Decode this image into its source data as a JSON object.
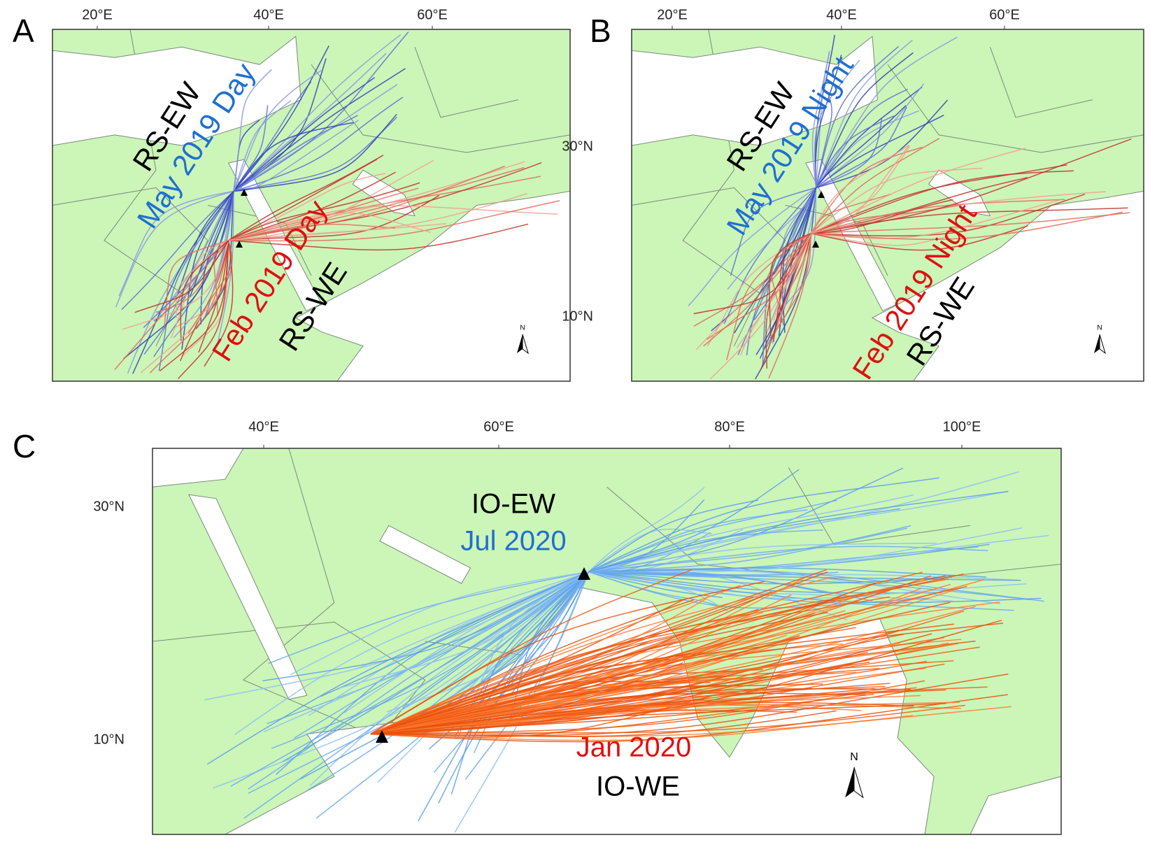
{
  "panels": [
    {
      "label": "A",
      "lon_labels": [
        "20°E",
        "40°E",
        "60°E"
      ],
      "lat_labels": [
        "30°N",
        "10°N"
      ],
      "annotations": {
        "route_north": "RS-EW",
        "north_period": "May 2019 Day",
        "south_period": "Feb 2019 Day",
        "route_south": "RS-WE"
      },
      "north_arrow": "N"
    },
    {
      "label": "B",
      "lon_labels": [
        "20°E",
        "40°E",
        "60°E"
      ],
      "lat_labels": [],
      "annotations": {
        "route_north": "RS-EW",
        "north_period": "May 2019 Night",
        "south_period": "Feb 2019 Night",
        "route_south": "RS-WE"
      },
      "north_arrow": "N"
    },
    {
      "label": "C",
      "lon_labels": [
        "40°E",
        "60°E",
        "80°E",
        "100°E"
      ],
      "lat_labels": [
        "30°N",
        "10°N"
      ],
      "annotations": {
        "route_north": "IO-EW",
        "north_period": "Jul 2020",
        "south_period": "Jan 2020",
        "route_south": "IO-WE"
      },
      "north_arrow": "N"
    }
  ]
}
